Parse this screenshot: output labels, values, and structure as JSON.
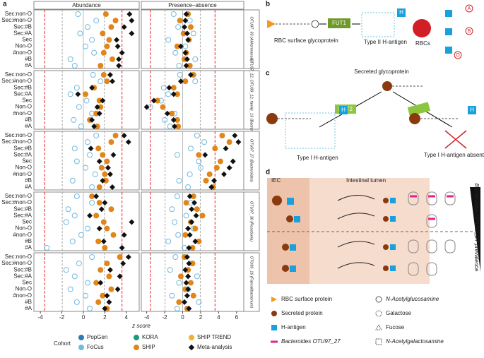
{
  "figure": {
    "letters": [
      "a",
      "b",
      "c",
      "d"
    ],
    "a": {
      "col_titles": [
        "Abundance",
        "Presence–absence"
      ],
      "x_label": "z score",
      "rows": [
        "Sec:non-O",
        "Sec:#non-O",
        "Sec:#B",
        "Sec:#A",
        "Sec",
        "Non-O",
        "#non-O",
        "#B",
        "#A"
      ],
      "xlim": [
        [
          -4.6,
          5.2
        ],
        [
          -4.6,
          6.8
        ]
      ],
      "xticks": [
        [
          -4,
          -2,
          0,
          2,
          4
        ],
        [
          -4,
          -2,
          0,
          2,
          4,
          6
        ]
      ],
      "red_lines": [
        -3.6,
        3.6
      ],
      "gray_lines": [
        -1.96,
        1.96
      ],
      "cohort_title": "Cohort",
      "cohorts": [
        {
          "name": "PopGen",
          "color": "#2b7bba",
          "filled": true
        },
        {
          "name": "FoCus",
          "color": "#74b9de",
          "filled": false
        },
        {
          "name": "KORA",
          "color": "#1b9a78",
          "filled": true
        },
        {
          "name": "SHIP",
          "color": "#e0861a",
          "filled": true
        },
        {
          "name": "SHIP TREND",
          "color": "#f0b429",
          "filled": false
        },
        {
          "name": "Meta-analysis",
          "color": "#111111",
          "filled": true
        }
      ],
      "panels": [
        {
          "label": "OTU97_33 (Akkermansia)",
          "series": [
            {
              "name": "FoCus",
              "abundance": [
                -0.5,
                1.2,
                0.4,
                -0.3,
                0.8,
                0.2,
                1.0,
                -1.2,
                -0.8
              ],
              "presence": [
                -1.0,
                0.8,
                -0.5,
                1.2,
                -1.6,
                0.3,
                -0.8,
                1.4,
                -0.4
              ]
            },
            {
              "name": "SHIP",
              "abundance": [
                2.1,
                3.0,
                2.6,
                1.8,
                2.4,
                2.2,
                1.9,
                2.7,
                1.6
              ],
              "presence": [
                0.6,
                -0.3,
                0.9,
                0.1,
                0.7,
                -0.6,
                0.4,
                0.2,
                0.8
              ]
            },
            {
              "name": "Meta-analysis",
              "abundance": [
                4.3,
                4.5,
                3.8,
                4.5,
                3.1,
                3.2,
                3.6,
                3.3,
                3.3
              ],
              "presence": [
                0.4,
                0.3,
                0.2,
                0.5,
                0.6,
                -0.2,
                0.3,
                0.5,
                0.4
              ]
            }
          ]
        },
        {
          "label": "OTU97_12, OTU99_12, family_13 (Bacteroides)",
          "series": [
            {
              "name": "FoCus",
              "abundance": [
                0.9,
                1.6,
                -0.6,
                -1.2,
                0.3,
                -0.4,
                0.8,
                -0.9,
                -0.2
              ],
              "presence": [
                -0.3,
                1.4,
                -2.1,
                -1.6,
                -2.4,
                -3.6,
                -0.9,
                -2.0,
                -1.4
              ]
            },
            {
              "name": "SHIP",
              "abundance": [
                1.9,
                2.2,
                1.0,
                0.2,
                1.5,
                1.6,
                1.2,
                0.6,
                1.3
              ],
              "presence": [
                1.2,
                0.3,
                -1.0,
                -0.6,
                -2.8,
                -2.2,
                -1.2,
                -0.6,
                -0.5
              ]
            },
            {
              "name": "Meta-analysis",
              "abundance": [
                2.5,
                2.7,
                0.8,
                -0.5,
                1.8,
                1.3,
                1.5,
                0.8,
                1.0
              ],
              "presence": [
                0.9,
                -0.2,
                -1.5,
                -1.0,
                -3.2,
                -4.0,
                -1.7,
                -1.0,
                -0.9
              ]
            }
          ]
        },
        {
          "label": "OTU97_27 (Bacteroides)",
          "series": [
            {
              "name": "FoCus",
              "abundance": [
                1.2,
                0.4,
                -0.8,
                0.6,
                -0.6,
                0.2,
                1.1,
                -1.0,
                0.8
              ],
              "presence": [
                1.6,
                2.4,
                0.9,
                -0.6,
                1.8,
                2.0,
                0.8,
                -0.4,
                0.6
              ]
            },
            {
              "name": "SHIP",
              "abundance": [
                3.0,
                2.6,
                1.4,
                1.8,
                2.2,
                1.7,
                2.0,
                2.1,
                1.5
              ],
              "presence": [
                4.4,
                5.2,
                3.6,
                1.8,
                4.2,
                3.8,
                3.0,
                2.6,
                3.4
              ]
            },
            {
              "name": "Meta-analysis",
              "abundance": [
                3.8,
                4.2,
                0.7,
                2.8,
                1.5,
                2.3,
                2.5,
                1.8,
                2.7
              ],
              "presence": [
                5.8,
                6.2,
                4.8,
                2.5,
                5.6,
                5.2,
                4.6,
                3.5,
                3.2
              ]
            }
          ]
        },
        {
          "label": "OTU97_30 (Roseburia)",
          "series": [
            {
              "name": "FoCus",
              "abundance": [
                -0.6,
                0.8,
                -1.4,
                -0.8,
                -1.6,
                0.4,
                -0.2,
                -1.0,
                -3.4
              ],
              "presence": [
                -0.6,
                0.9,
                -1.2,
                0.4,
                -0.9,
                1.2,
                -0.5,
                -1.6,
                0.2
              ]
            },
            {
              "name": "SHIP",
              "abundance": [
                0.8,
                1.5,
                2.6,
                1.2,
                1.9,
                2.2,
                2.8,
                1.4,
                2.0
              ],
              "presence": [
                1.2,
                0.4,
                1.6,
                2.2,
                0.9,
                1.4,
                0.3,
                1.8,
                1.1
              ]
            },
            {
              "name": "Meta-analysis",
              "abundance": [
                1.2,
                2.0,
                1.7,
                0.6,
                4.5,
                1.5,
                3.8,
                1.9,
                3.6
              ],
              "presence": [
                0.8,
                1.3,
                1.0,
                1.5,
                1.0,
                0.6,
                0.8,
                1.4,
                0.7
              ]
            }
          ]
        },
        {
          "label": "OTU99_16 (Faecalibacterium)",
          "series": [
            {
              "name": "FoCus",
              "abundance": [
                0.8,
                -0.4,
                -1.6,
                -0.8,
                0.4,
                -1.2,
                0.2,
                -0.6,
                0.6
              ],
              "presence": [
                -0.8,
                0.9,
                -1.4,
                1.6,
                -0.4,
                0.6,
                -1.2,
                1.8,
                -0.6
              ]
            },
            {
              "name": "SHIP",
              "abundance": [
                3.4,
                2.2,
                1.6,
                2.4,
                1.2,
                2.6,
                1.8,
                1.4,
                2.2
              ],
              "presence": [
                0.2,
                1.1,
                0.6,
                -0.2,
                0.9,
                0.3,
                1.2,
                -0.4,
                0.5
              ]
            },
            {
              "name": "Meta-analysis",
              "abundance": [
                4.2,
                3.7,
                2.5,
                3.4,
                1.6,
                3.2,
                2.2,
                2.4,
                2.0
              ],
              "presence": [
                0.5,
                0.7,
                0.3,
                0.6,
                0.4,
                0.6,
                0.5,
                0.2,
                0.7
              ]
            }
          ]
        }
      ]
    },
    "b": {
      "protein": "RBC surface glycoprotein",
      "enzyme": "FUT1",
      "antigen": "Type II H-antigen",
      "cells": "RBCs",
      "h": "H"
    },
    "c": {
      "protein": "Secreted glycoprotein",
      "enzyme": "FUT2",
      "antigen": "Type I H-antigen",
      "absent": "Type I H-antigen absent"
    },
    "d": {
      "iec": "IEC",
      "lumen": "Intestinal lumen",
      "prevalence": "Bacteroides OTU97_27 prevalence",
      "blood_groups": [
        "A",
        "B",
        "O"
      ],
      "legend": [
        "RBC surface protein",
        "Secreted protein",
        "H-antigen",
        "Bacteroides OTU97_27",
        "N-Acetylglucosamine",
        "Galactose",
        "Fucose",
        "N-Acetylgalactosamine"
      ]
    }
  }
}
